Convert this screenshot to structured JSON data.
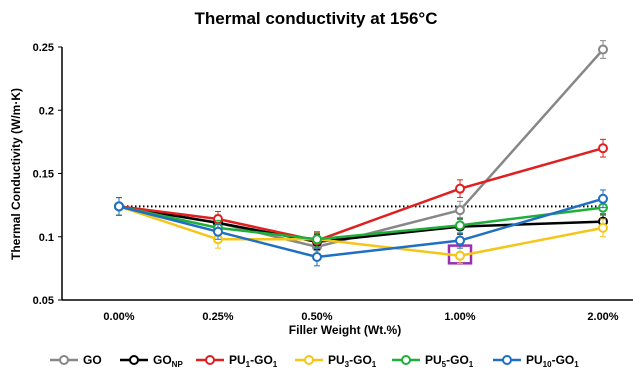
{
  "chart_data": {
    "type": "line",
    "title": "Thermal conductivity at 156°C",
    "xlabel": "Filler Weight (Wt.%)",
    "ylabel": "Thermal Conductivity (W/m·K)",
    "categories": [
      "0.00%",
      "0.25%",
      "0.50%",
      "1.00%",
      "2.00%"
    ],
    "ylim": [
      0.05,
      0.25
    ],
    "yticks": [
      0.05,
      0.1,
      0.15,
      0.2,
      0.25
    ],
    "ytick_labels": [
      "0.05",
      "0.1",
      "0.15",
      "0.2",
      "0.25"
    ],
    "grid": false,
    "legend_position": "bottom",
    "reference_line": {
      "value": 0.124,
      "style": "dotted",
      "color": "#000000"
    },
    "series": [
      {
        "name": "GO",
        "name_main": "GO",
        "name_sub": "",
        "name_sub2": "",
        "color": "#878787",
        "values": [
          0.124,
          0.111,
          0.092,
          0.121,
          0.248
        ],
        "errors": [
          0.007,
          0.006,
          0.006,
          0.007,
          0.007
        ]
      },
      {
        "name": "GONP",
        "name_main": "GO",
        "name_sub": "NP",
        "name_sub2": "",
        "color": "#000000",
        "values": [
          0.124,
          0.111,
          0.096,
          0.108,
          0.112
        ],
        "errors": [
          0.007,
          0.006,
          0.006,
          0.006,
          0.006
        ]
      },
      {
        "name": "PU1-GO1",
        "name_main": "PU",
        "name_sub": "1",
        "name_mid": "-GO",
        "name_sub2": "1",
        "color": "#e02020",
        "values": [
          0.124,
          0.114,
          0.097,
          0.138,
          0.17
        ],
        "errors": [
          0.007,
          0.006,
          0.006,
          0.007,
          0.007
        ]
      },
      {
        "name": "PU3-GO1",
        "name_main": "PU",
        "name_sub": "3",
        "name_mid": "-GO",
        "name_sub2": "1",
        "color": "#f5c518",
        "values": [
          0.124,
          0.098,
          0.098,
          0.085,
          0.107
        ],
        "errors": [
          0.007,
          0.007,
          0.006,
          0.006,
          0.007
        ]
      },
      {
        "name": "PU5-GO1",
        "name_main": "PU",
        "name_sub": "5",
        "name_mid": "-GO",
        "name_sub2": "1",
        "color": "#1fae3a",
        "values": [
          0.124,
          0.107,
          0.098,
          0.109,
          0.123
        ],
        "errors": [
          0.007,
          0.006,
          0.006,
          0.006,
          0.006
        ]
      },
      {
        "name": "PU10-GO1",
        "name_main": "PU",
        "name_sub": "10",
        "name_mid": "-GO",
        "name_sub2": "1",
        "color": "#1f6fc2",
        "values": [
          0.124,
          0.104,
          0.084,
          0.097,
          0.13
        ],
        "errors": [
          0.007,
          0.006,
          0.007,
          0.006,
          0.007
        ]
      }
    ],
    "highlight_box": {
      "category": "1.00%",
      "y_low": 0.079,
      "y_high": 0.093,
      "color": "#9b2fae"
    }
  }
}
